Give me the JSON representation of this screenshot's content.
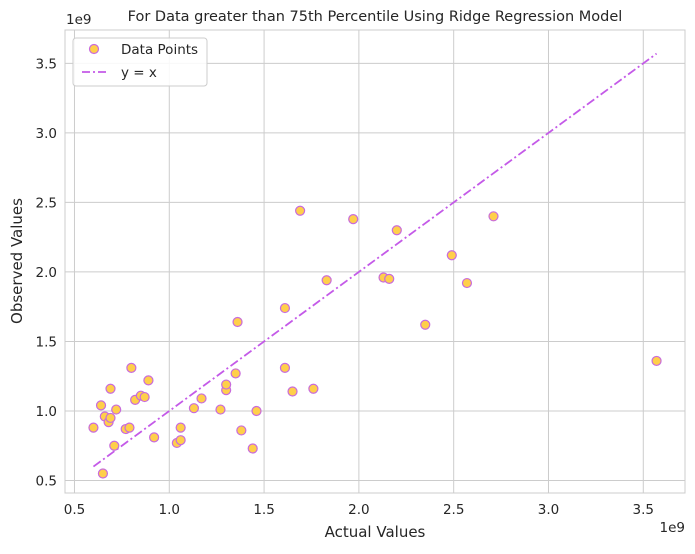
{
  "chart_data": {
    "type": "scatter",
    "title": "For Data  greater than 75th Percentile Using Ridge Regression Model",
    "xlabel": "Actual Values",
    "ylabel": "Observed Values",
    "x_offset_label": "1e9",
    "y_offset_label": "1e9",
    "xlim": [
      0.45,
      3.72
    ],
    "ylim": [
      0.41,
      3.74
    ],
    "xticks": [
      0.5,
      1.0,
      1.5,
      2.0,
      2.5,
      3.0,
      3.5
    ],
    "yticks": [
      0.5,
      1.0,
      1.5,
      2.0,
      2.5,
      3.0,
      3.5
    ],
    "xtick_labels": [
      "0.5",
      "1.0",
      "1.5",
      "2.0",
      "2.5",
      "3.0",
      "3.5"
    ],
    "ytick_labels": [
      "0.5",
      "1.0",
      "1.5",
      "2.0",
      "2.5",
      "3.0",
      "3.5"
    ],
    "grid": true,
    "legend_position": "top-left",
    "series": [
      {
        "name": "Data Points",
        "kind": "scatter",
        "fill_color": "#ffcf4a",
        "edge_color": "#c86bdc",
        "points": [
          [
            0.6,
            0.88
          ],
          [
            0.64,
            1.04
          ],
          [
            0.65,
            0.55
          ],
          [
            0.66,
            0.96
          ],
          [
            0.68,
            0.92
          ],
          [
            0.69,
            1.16
          ],
          [
            0.69,
            0.95
          ],
          [
            0.71,
            0.75
          ],
          [
            0.72,
            1.01
          ],
          [
            0.77,
            0.87
          ],
          [
            0.79,
            0.88
          ],
          [
            0.8,
            1.31
          ],
          [
            0.82,
            1.08
          ],
          [
            0.85,
            1.11
          ],
          [
            0.87,
            1.1
          ],
          [
            0.89,
            1.22
          ],
          [
            0.92,
            0.81
          ],
          [
            1.04,
            0.77
          ],
          [
            1.06,
            0.79
          ],
          [
            1.06,
            0.88
          ],
          [
            1.13,
            1.02
          ],
          [
            1.17,
            1.09
          ],
          [
            1.27,
            1.01
          ],
          [
            1.3,
            1.15
          ],
          [
            1.3,
            1.19
          ],
          [
            1.35,
            1.27
          ],
          [
            1.36,
            1.64
          ],
          [
            1.38,
            0.86
          ],
          [
            1.44,
            0.73
          ],
          [
            1.46,
            1.0
          ],
          [
            1.61,
            1.31
          ],
          [
            1.61,
            1.74
          ],
          [
            1.65,
            1.14
          ],
          [
            1.69,
            2.44
          ],
          [
            1.76,
            1.16
          ],
          [
            1.83,
            1.94
          ],
          [
            1.97,
            2.38
          ],
          [
            2.13,
            1.96
          ],
          [
            2.16,
            1.95
          ],
          [
            2.2,
            2.3
          ],
          [
            2.35,
            1.62
          ],
          [
            2.49,
            2.12
          ],
          [
            2.57,
            1.92
          ],
          [
            2.71,
            2.4
          ],
          [
            3.57,
            1.36
          ]
        ]
      },
      {
        "name": "y = x",
        "kind": "line",
        "line_style": "dashdot",
        "color": "#c45ae8",
        "x": [
          0.6,
          3.57
        ],
        "y": [
          0.6,
          3.57
        ]
      }
    ]
  }
}
